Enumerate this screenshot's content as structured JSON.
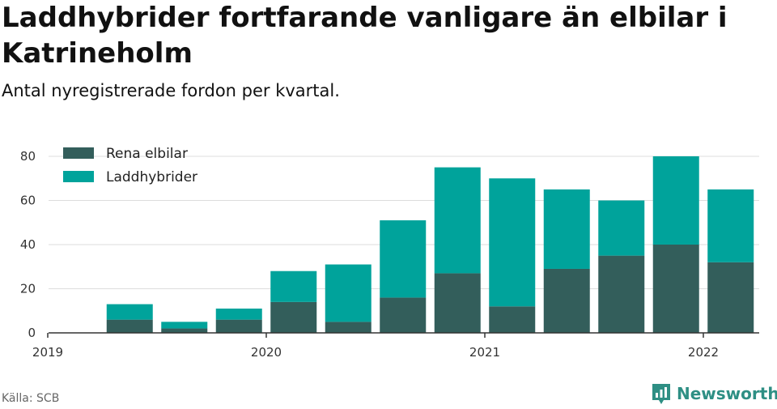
{
  "header": {
    "title": "Laddhybrider fortfarande vanligare än elbilar i Katrineholm",
    "subtitle": "Antal nyregistrerade fordon per kvartal."
  },
  "footer": {
    "source": "Källa: SCB",
    "brand": "Newsworthy"
  },
  "colors": {
    "elbilar": "#335e5b",
    "laddhybrider": "#00a39b",
    "grid": "#dddddd",
    "axis": "#333333"
  },
  "chart_data": {
    "type": "bar",
    "stacked": true,
    "title": "Laddhybrider fortfarande vanligare än elbilar i Katrineholm",
    "subtitle": "Antal nyregistrerade fordon per kvartal.",
    "xlabel": "",
    "ylabel": "",
    "ylim": [
      0,
      80
    ],
    "yticks": [
      0,
      20,
      40,
      60,
      80
    ],
    "xticks": [
      "2019",
      "2020",
      "2021",
      "2022"
    ],
    "legend_position": "top-left",
    "categories": [
      "2019 Q2",
      "2019 Q3",
      "2019 Q4",
      "2020 Q1",
      "2020 Q2",
      "2020 Q3",
      "2020 Q4",
      "2021 Q1",
      "2021 Q2",
      "2021 Q3",
      "2021 Q4",
      "2022 Q1"
    ],
    "series": [
      {
        "name": "Rena elbilar",
        "values": [
          6,
          2,
          6,
          14,
          5,
          16,
          27,
          12,
          29,
          35,
          40,
          32
        ]
      },
      {
        "name": "Laddhybrider",
        "values": [
          7,
          3,
          5,
          14,
          26,
          35,
          48,
          58,
          36,
          25,
          40,
          33
        ]
      }
    ]
  }
}
